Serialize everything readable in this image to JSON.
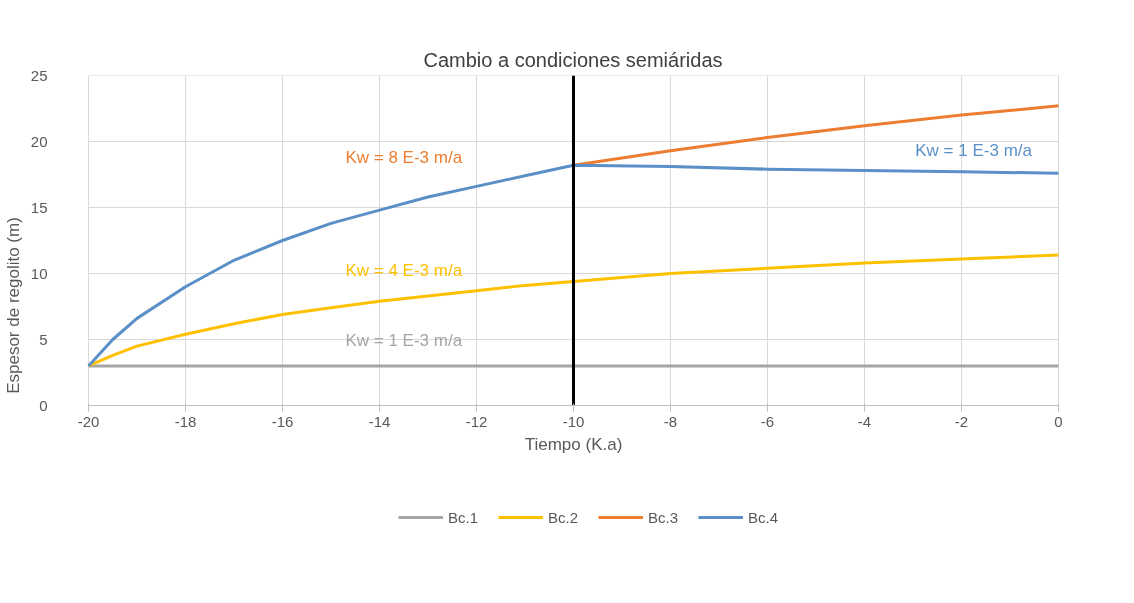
{
  "chart_data": {
    "type": "line",
    "xlabel": "Tiempo (K.a)",
    "ylabel": "Espesor de regolito (m)",
    "x": [
      -20,
      -19.5,
      -19,
      -18,
      -17,
      -16,
      -15,
      -14,
      -13,
      -12,
      -11,
      -10,
      -8,
      -6,
      -4,
      -2,
      0
    ],
    "series": [
      {
        "name": "Bc.1",
        "color": "#a5a5a5",
        "values": [
          3,
          3,
          3,
          3,
          3,
          3,
          3,
          3,
          3,
          3,
          3,
          3,
          3,
          3,
          3,
          3,
          3
        ]
      },
      {
        "name": "Bc.2",
        "color": "#ffc000",
        "values": [
          3,
          3.8,
          4.5,
          5.4,
          6.2,
          6.9,
          7.4,
          7.9,
          8.3,
          8.7,
          9.1,
          9.4,
          10.0,
          10.4,
          10.8,
          11.1,
          11.4
        ]
      },
      {
        "name": "Bc.3",
        "color": "#ed7d31",
        "values": [
          null,
          null,
          null,
          null,
          null,
          null,
          null,
          null,
          null,
          null,
          null,
          18.2,
          19.3,
          20.3,
          21.2,
          22.0,
          22.7
        ]
      },
      {
        "name": "Bc.4",
        "color": "#5b8fc7",
        "values": [
          3,
          5.0,
          6.6,
          9.0,
          11.0,
          12.5,
          13.8,
          14.8,
          15.8,
          16.6,
          17.4,
          18.2,
          18.1,
          17.9,
          17.8,
          17.7,
          17.6
        ]
      }
    ],
    "xlim": [
      -20,
      0
    ],
    "xticks": [
      -20,
      -18,
      -16,
      -14,
      -12,
      -10,
      -8,
      -6,
      -4,
      -2,
      0
    ],
    "ylim": [
      0,
      25
    ],
    "yticks": [
      0,
      5,
      10,
      15,
      20,
      25
    ],
    "ref_lines": [
      {
        "axis": "x",
        "value": -10,
        "label": "Cambio a condiciones semiáridas",
        "color": "#000000"
      }
    ],
    "annotations": [
      "Kw = 1 E-3 m/a",
      "Kw = 4 E-3 m/a",
      "Kw = 8 E-3 m/a",
      "Kw = 1 E-3 m/a"
    ],
    "grid": true,
    "legend": "bottom",
    "marker": "none",
    "line_style": "solid"
  }
}
